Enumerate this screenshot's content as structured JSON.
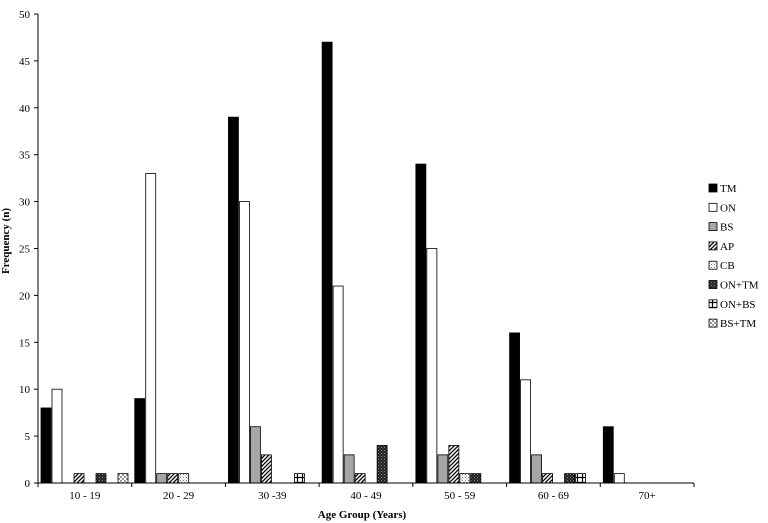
{
  "chart_data": {
    "type": "bar",
    "title": "",
    "xlabel": "Age Group  (Years)",
    "ylabel": "Frequency  (n)",
    "ylim": [
      0,
      50
    ],
    "yticks": [
      0,
      5,
      10,
      15,
      20,
      25,
      30,
      35,
      40,
      45,
      50
    ],
    "grid": false,
    "legend_position": "right",
    "categories": [
      "10 - 19",
      "20 - 29",
      "30 -39",
      "40 - 49",
      "50 - 59",
      "60 - 69",
      "70+"
    ],
    "series": [
      {
        "name": "TM",
        "pattern": "solid-black",
        "values": [
          8,
          9,
          39,
          47,
          34,
          16,
          6
        ]
      },
      {
        "name": "ON",
        "pattern": "white",
        "values": [
          10,
          33,
          30,
          21,
          25,
          11,
          1
        ]
      },
      {
        "name": "BS",
        "pattern": "gray",
        "values": [
          0,
          1,
          6,
          3,
          3,
          3,
          0
        ]
      },
      {
        "name": "AP",
        "pattern": "diagonal",
        "values": [
          1,
          1,
          3,
          1,
          4,
          1,
          0
        ]
      },
      {
        "name": "CB",
        "pattern": "dots-light",
        "values": [
          0,
          1,
          0,
          0,
          1,
          0,
          0
        ]
      },
      {
        "name": "ON+TM",
        "pattern": "dots-dark",
        "values": [
          1,
          0,
          0,
          4,
          1,
          1,
          0
        ]
      },
      {
        "name": "ON+BS",
        "pattern": "cross",
        "values": [
          0,
          0,
          1,
          0,
          0,
          1,
          0
        ]
      },
      {
        "name": "BS+TM",
        "pattern": "checker",
        "values": [
          1,
          0,
          0,
          0,
          0,
          0,
          0
        ]
      }
    ],
    "colors": {
      "axis": "#000000",
      "gray": "#a6a6a6"
    }
  }
}
